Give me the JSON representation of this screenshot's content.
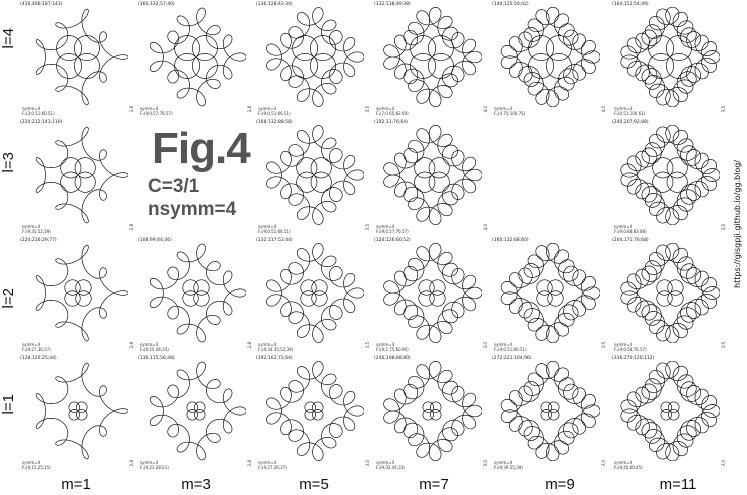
{
  "figure": {
    "title": "Fig.4",
    "constant_line": "C=3/1",
    "symmetry_line": "nsymm=4",
    "url": "https://gisgpji.github.io/gg.blog/"
  },
  "rows": [
    "l=4",
    "l=3",
    "l=2",
    "l=1"
  ],
  "columns": [
    "m=1",
    "m=3",
    "m=5",
    "m=7",
    "m=9",
    "m=11"
  ],
  "cells": [
    {
      "row": "l=4",
      "col": "m=1",
      "label": "(416;406;187;143)",
      "sym": "symm=4",
      "f": "F₁(3;0.51;60.51)",
      "scale": "2.8"
    },
    {
      "row": "l=4",
      "col": "m=3",
      "label": "(160;132;57;40)",
      "sym": "symm=4",
      "f": "F₁(9;0.57;76.57)",
      "scale": "2.8"
    },
    {
      "row": "l=4",
      "col": "m=5",
      "label": "(136;128;42;34)",
      "sym": "symm=4",
      "f": "F₁(9;0.51;66.51)",
      "scale": "3.5"
    },
    {
      "row": "l=4",
      "col": "m=7",
      "label": "(132;138;49;38)",
      "sym": "symm=4",
      "f": "F₁(7;0.65;82.69)",
      "scale": "4.0"
    },
    {
      "row": "l=4",
      "col": "m=9",
      "label": "(140;125;50;42)",
      "sym": "symm=4",
      "f": "F₁(4.75;100.75)",
      "scale": "4.0"
    },
    {
      "row": "l=4",
      "col": "m=11",
      "label": "(164;152;54;49)",
      "sym": "symm=4",
      "f": "F₁(0.51;100.61)",
      "scale": "3.5"
    },
    {
      "row": "l=3",
      "col": "m=1",
      "label": "(220;212;143;110)",
      "sym": "symm=4",
      "f": "F₁(9;35.52;39)",
      "scale": "2.8"
    },
    {
      "row": "l=3",
      "col": "m=5",
      "label": "(168;132;88;58)",
      "sym": "symm=4",
      "f": "F₁(9;0.51;66.51)",
      "scale": "3.5"
    },
    {
      "row": "l=3",
      "col": "m=7",
      "label": "(192;11;76;64)",
      "sym": "symm=4",
      "f": "F₁(9;0.57;76.57)",
      "scale": "4.0"
    },
    {
      "row": "l=3",
      "col": "m=11",
      "label": "(240;207;92;88)",
      "sym": "symm=4",
      "f": "F₁(9;0.88;83.88)",
      "scale": "3.5"
    },
    {
      "row": "l=2",
      "col": "m=1",
      "label": "(224;216;29;77)",
      "sym": "symm=4",
      "f": "F₁(9;27.36;37)",
      "scale": "2.8"
    },
    {
      "row": "l=2",
      "col": "m=3",
      "label": "(108;99;44;36)",
      "sym": "symm=4",
      "f": "F₁(9;25.44;33)",
      "scale": "2.8"
    },
    {
      "row": "l=2",
      "col": "m=5",
      "label": "(132;117;52;44)",
      "sym": "symm=4",
      "f": "F₁(9;34.35;52;39)",
      "scale": "3.5"
    },
    {
      "row": "l=2",
      "col": "m=7",
      "label": "(124;126;60;52)",
      "sym": "symm=4",
      "f": "F₁(9;2.75;60.96)",
      "scale": "3.0"
    },
    {
      "row": "l=2",
      "col": "m=9",
      "label": "(160;132;68;60)",
      "sym": "symm=4",
      "f": "F₁(9;0.51;66.51)",
      "scale": "3.5"
    },
    {
      "row": "l=2",
      "col": "m=11",
      "label": "(204;171;76;68)",
      "sym": "symm=4",
      "f": "F₁(9;0.58;76.57)",
      "scale": "3.5"
    },
    {
      "row": "l=1",
      "col": "m=1",
      "label": "(128;120;25;44)",
      "sym": "symm=4",
      "f": "F₁(9;15.25;15)",
      "scale": "2.8"
    },
    {
      "row": "l=1",
      "col": "m=3",
      "label": "(136;115;56;48)",
      "sym": "symm=4",
      "f": "F₁(9;21.28;21)",
      "scale": "2.8"
    },
    {
      "row": "l=1",
      "col": "m=5",
      "label": "(192;162;72;64)",
      "sym": "symm=4",
      "f": "F₁(9;27.36;37)",
      "scale": "3.0"
    },
    {
      "row": "l=1",
      "col": "m=7",
      "label": "(240;198;88;80)",
      "sym": "symm=4",
      "f": "F₁(9;33.44;33)",
      "scale": "3.0"
    },
    {
      "row": "l=1",
      "col": "m=9",
      "label": "(272;221;104;96)",
      "sym": "symm=4",
      "f": "F₁(9;39.55;39)",
      "scale": "3.0"
    },
    {
      "row": "l=1",
      "col": "m=11",
      "label": "(336;270;120;112)",
      "sym": "symm=4",
      "f": "F₁(9;45.60;45)",
      "scale": "3.0"
    }
  ]
}
